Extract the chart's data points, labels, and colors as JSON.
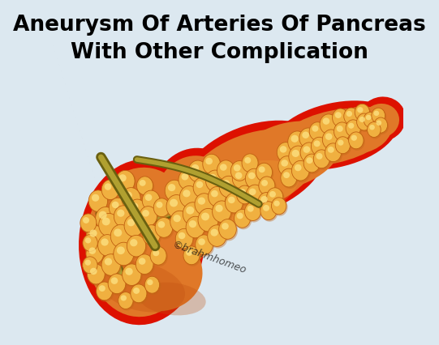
{
  "title_line1": "Aneurysm Of Arteries Of Pancreas",
  "title_line2": "With Other Complication",
  "title_fontsize": 19,
  "title_color": "#000000",
  "title_fontweight": "bold",
  "background_color": "#dce8f0",
  "watermark": "©brahmhomeo",
  "watermark_color": "#111111",
  "watermark_fontsize": 9,
  "pancreas_main_color": "#e07828",
  "pancreas_dark_color": "#c05010",
  "pancreas_edge_red": "#dd1100",
  "pancreas_light_color": "#f0a030",
  "pancreas_highlight": "#f8d070",
  "duct_color_dark": "#6a6010",
  "duct_color_light": "#b0a030",
  "bubble_color": "#f0b040",
  "bubble_highlight": "#fce080",
  "bubble_shadow": "#c06818",
  "bubble_edge": "#c06010"
}
